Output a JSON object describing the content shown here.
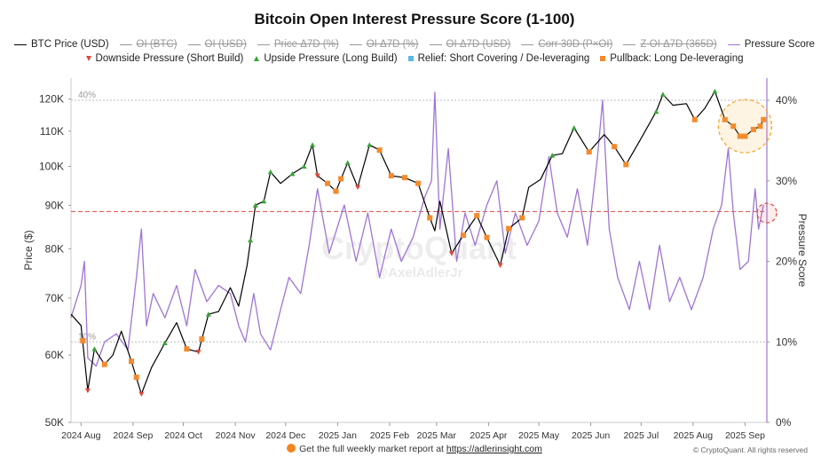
{
  "title": "Bitcoin Open Interest Pressure Score (1-100)",
  "legend_row1": [
    {
      "label": "BTC Price (USD)",
      "color": "#000000",
      "enabled": true,
      "icon": "line"
    },
    {
      "label": "OI (BTC)",
      "color": "#999999",
      "enabled": false,
      "icon": "line"
    },
    {
      "label": "OI (USD)",
      "color": "#999999",
      "enabled": false,
      "icon": "line"
    },
    {
      "label": "Price Δ7D (%)",
      "color": "#999999",
      "enabled": false,
      "icon": "line"
    },
    {
      "label": "OI Δ7D (%)",
      "color": "#999999",
      "enabled": false,
      "icon": "line"
    },
    {
      "label": "OI Δ7D (USD)",
      "color": "#999999",
      "enabled": false,
      "icon": "line"
    },
    {
      "label": "Corr 30D (P×OI)",
      "color": "#999999",
      "enabled": false,
      "icon": "line"
    },
    {
      "label": "Z OI Δ7D (365D)",
      "color": "#999999",
      "enabled": false,
      "icon": "line"
    },
    {
      "label": "Pressure Score",
      "color": "#9e74d6",
      "enabled": true,
      "icon": "line"
    }
  ],
  "legend_row2": [
    {
      "label": "Downside Pressure (Short Build)",
      "color": "#e2463a",
      "icon": "triangle-down"
    },
    {
      "label": "Upside Pressure (Long Build)",
      "color": "#3aa33a",
      "icon": "triangle-up"
    },
    {
      "label": "Relief: Short Covering / De-leveraging",
      "color": "#5bb8e0",
      "icon": "square"
    },
    {
      "label": "Pullback: Long De-leveraging",
      "color": "#f28a2e",
      "icon": "square"
    }
  ],
  "footer": {
    "text": "Get the full weekly market report at ",
    "link": "https://adlerinsight.com",
    "icon": "orange-circle-icon"
  },
  "copyright": "© CryptoQuant. All rights reserved",
  "watermark": {
    "line1": "CryptoQuant",
    "line2": "@AxelAdlerJr"
  },
  "chart_data": {
    "type": "line",
    "title": "Bitcoin Open Interest Pressure Score (1-100)",
    "xlabel": "",
    "ylabel_left": "Price ($)",
    "ylabel_right": "Pressure Score",
    "y_left_scale": "log",
    "y_left_ticks": [
      50000,
      60000,
      70000,
      80000,
      90000,
      100000,
      110000,
      120000
    ],
    "y_left_tick_labels": [
      "50K",
      "60K",
      "70K",
      "80K",
      "90K",
      "100K",
      "110K",
      "120K"
    ],
    "y_right_ticks": [
      0,
      10,
      20,
      30,
      40
    ],
    "y_right_tick_labels": [
      "0%",
      "10%",
      "20%",
      "30%",
      "40%"
    ],
    "x_tick_labels": [
      "2024 Aug",
      "2024 Sep",
      "2024 Oct",
      "2024 Nov",
      "2024 Dec",
      "2025 Jan",
      "2025 Feb",
      "2025 Mar",
      "2025 Apr",
      "2025 May",
      "2025 Jun",
      "2025 Jul",
      "2025 Aug",
      "2025 Sep"
    ],
    "x_range": [
      "2024-07-26",
      "2025-09-14"
    ],
    "reference_lines": [
      {
        "axis": "right",
        "value": 40,
        "label": "40%",
        "style": "dotted",
        "color": "#bbbbbb"
      },
      {
        "axis": "right",
        "value": 10,
        "label": "10%",
        "style": "dotted",
        "color": "#bbbbbb"
      },
      {
        "axis": "left",
        "value": 88500,
        "label": "",
        "style": "dashed",
        "color": "#e2463a"
      }
    ],
    "highlight_circles": [
      {
        "date": "2025-09-01",
        "axis": "left",
        "value": 111500,
        "color": "#f5a623"
      },
      {
        "date": "2025-09-14",
        "axis": "right",
        "value": 26,
        "color": "#e2463a"
      }
    ],
    "series": [
      {
        "name": "BTC Price (USD)",
        "axis": "left",
        "color": "#000000",
        "points": [
          [
            "2024-07-26",
            67000
          ],
          [
            "2024-08-01",
            65000
          ],
          [
            "2024-08-05",
            54500
          ],
          [
            "2024-08-09",
            61000
          ],
          [
            "2024-08-15",
            58500
          ],
          [
            "2024-08-20",
            60000
          ],
          [
            "2024-08-25",
            64000
          ],
          [
            "2024-08-31",
            59000
          ],
          [
            "2024-09-06",
            54000
          ],
          [
            "2024-09-12",
            58000
          ],
          [
            "2024-09-20",
            62000
          ],
          [
            "2024-09-27",
            65500
          ],
          [
            "2024-10-03",
            61000
          ],
          [
            "2024-10-10",
            60500
          ],
          [
            "2024-10-16",
            67000
          ],
          [
            "2024-10-22",
            67500
          ],
          [
            "2024-10-29",
            72000
          ],
          [
            "2024-11-03",
            68500
          ],
          [
            "2024-11-08",
            76500
          ],
          [
            "2024-11-13",
            90000
          ],
          [
            "2024-11-18",
            91000
          ],
          [
            "2024-11-22",
            98500
          ],
          [
            "2024-11-28",
            95500
          ],
          [
            "2024-12-05",
            98000
          ],
          [
            "2024-12-12",
            100000
          ],
          [
            "2024-12-17",
            106000
          ],
          [
            "2024-12-20",
            97500
          ],
          [
            "2024-12-26",
            95500
          ],
          [
            "2024-12-31",
            93500
          ],
          [
            "2025-01-07",
            101000
          ],
          [
            "2025-01-13",
            94500
          ],
          [
            "2025-01-20",
            106000
          ],
          [
            "2025-01-26",
            104500
          ],
          [
            "2025-02-02",
            97500
          ],
          [
            "2025-02-10",
            97000
          ],
          [
            "2025-02-18",
            95500
          ],
          [
            "2025-02-25",
            87000
          ],
          [
            "2025-02-28",
            84000
          ],
          [
            "2025-03-03",
            91000
          ],
          [
            "2025-03-10",
            79000
          ],
          [
            "2025-03-17",
            83000
          ],
          [
            "2025-03-25",
            87500
          ],
          [
            "2025-03-31",
            82500
          ],
          [
            "2025-04-08",
            76500
          ],
          [
            "2025-04-13",
            84500
          ],
          [
            "2025-04-21",
            87000
          ],
          [
            "2025-04-25",
            94500
          ],
          [
            "2025-05-02",
            96500
          ],
          [
            "2025-05-09",
            103000
          ],
          [
            "2025-05-15",
            103500
          ],
          [
            "2025-05-22",
            111000
          ],
          [
            "2025-05-31",
            104000
          ],
          [
            "2025-06-09",
            109000
          ],
          [
            "2025-06-15",
            105500
          ],
          [
            "2025-06-22",
            100500
          ],
          [
            "2025-06-30",
            107000
          ],
          [
            "2025-07-10",
            116000
          ],
          [
            "2025-07-14",
            121500
          ],
          [
            "2025-07-20",
            118000
          ],
          [
            "2025-07-28",
            118500
          ],
          [
            "2025-08-02",
            113500
          ],
          [
            "2025-08-08",
            117000
          ],
          [
            "2025-08-14",
            122500
          ],
          [
            "2025-08-20",
            113500
          ],
          [
            "2025-08-25",
            111500
          ],
          [
            "2025-08-29",
            108500
          ],
          [
            "2025-09-01",
            108500
          ],
          [
            "2025-09-06",
            110500
          ],
          [
            "2025-09-10",
            111500
          ],
          [
            "2025-09-12",
            113500
          ]
        ]
      },
      {
        "name": "Pressure Score",
        "axis": "right",
        "color": "#9e74d6",
        "points": [
          [
            "2024-07-26",
            13
          ],
          [
            "2024-08-01",
            17
          ],
          [
            "2024-08-03",
            20
          ],
          [
            "2024-08-05",
            8
          ],
          [
            "2024-08-10",
            7
          ],
          [
            "2024-08-15",
            10
          ],
          [
            "2024-08-22",
            11
          ],
          [
            "2024-08-29",
            9
          ],
          [
            "2024-09-03",
            18
          ],
          [
            "2024-09-06",
            24
          ],
          [
            "2024-09-09",
            12
          ],
          [
            "2024-09-13",
            16
          ],
          [
            "2024-09-20",
            13
          ],
          [
            "2024-09-27",
            17
          ],
          [
            "2024-10-03",
            12
          ],
          [
            "2024-10-08",
            19
          ],
          [
            "2024-10-15",
            15
          ],
          [
            "2024-10-22",
            17
          ],
          [
            "2024-10-29",
            16
          ],
          [
            "2024-11-03",
            12
          ],
          [
            "2024-11-07",
            10
          ],
          [
            "2024-11-12",
            16
          ],
          [
            "2024-11-16",
            11
          ],
          [
            "2024-11-22",
            9
          ],
          [
            "2024-11-28",
            14
          ],
          [
            "2024-12-03",
            18
          ],
          [
            "2024-12-10",
            16
          ],
          [
            "2024-12-15",
            22
          ],
          [
            "2024-12-20",
            29
          ],
          [
            "2024-12-27",
            21
          ],
          [
            "2025-01-05",
            27
          ],
          [
            "2025-01-12",
            20
          ],
          [
            "2025-01-19",
            26
          ],
          [
            "2025-01-26",
            18
          ],
          [
            "2025-02-02",
            24
          ],
          [
            "2025-02-08",
            20
          ],
          [
            "2025-02-15",
            23
          ],
          [
            "2025-02-22",
            28
          ],
          [
            "2025-02-26",
            30
          ],
          [
            "2025-02-28",
            41
          ],
          [
            "2025-03-03",
            24
          ],
          [
            "2025-03-08",
            34
          ],
          [
            "2025-03-13",
            20
          ],
          [
            "2025-03-18",
            26
          ],
          [
            "2025-03-24",
            22
          ],
          [
            "2025-03-31",
            27
          ],
          [
            "2025-04-06",
            30
          ],
          [
            "2025-04-11",
            21
          ],
          [
            "2025-04-17",
            26
          ],
          [
            "2025-04-24",
            22
          ],
          [
            "2025-05-01",
            25
          ],
          [
            "2025-05-07",
            33
          ],
          [
            "2025-05-12",
            26
          ],
          [
            "2025-05-18",
            23
          ],
          [
            "2025-05-24",
            29
          ],
          [
            "2025-05-30",
            22
          ],
          [
            "2025-06-05",
            33
          ],
          [
            "2025-06-08",
            40
          ],
          [
            "2025-06-12",
            24
          ],
          [
            "2025-06-17",
            18
          ],
          [
            "2025-06-24",
            14
          ],
          [
            "2025-06-30",
            20
          ],
          [
            "2025-07-06",
            14
          ],
          [
            "2025-07-12",
            22
          ],
          [
            "2025-07-18",
            15
          ],
          [
            "2025-07-24",
            18
          ],
          [
            "2025-07-31",
            14
          ],
          [
            "2025-08-07",
            18
          ],
          [
            "2025-08-13",
            24
          ],
          [
            "2025-08-18",
            27
          ],
          [
            "2025-08-22",
            34
          ],
          [
            "2025-08-25",
            26
          ],
          [
            "2025-08-29",
            19
          ],
          [
            "2025-09-03",
            20
          ],
          [
            "2025-09-07",
            29
          ],
          [
            "2025-09-09",
            24
          ],
          [
            "2025-09-12",
            27
          ]
        ]
      }
    ],
    "markers": {
      "downside": [
        "2024-08-05",
        "2024-09-06",
        "2024-10-10",
        "2024-12-20",
        "2025-01-13",
        "2025-03-10",
        "2025-04-08"
      ],
      "upside": [
        "2024-08-09",
        "2024-09-20",
        "2024-10-16",
        "2024-11-10",
        "2024-11-13",
        "2024-11-18",
        "2024-11-22",
        "2024-12-05",
        "2024-12-12",
        "2024-12-17",
        "2025-01-07",
        "2025-01-20",
        "2025-05-09",
        "2025-05-22",
        "2025-07-10",
        "2025-07-14",
        "2025-08-14"
      ],
      "pullback": [
        "2024-08-02",
        "2024-08-15",
        "2024-08-31",
        "2024-09-03",
        "2024-10-03",
        "2024-10-12",
        "2024-12-26",
        "2024-12-31",
        "2025-01-03",
        "2025-01-26",
        "2025-02-02",
        "2025-02-10",
        "2025-02-18",
        "2025-02-25",
        "2025-03-17",
        "2025-03-25",
        "2025-03-31",
        "2025-04-13",
        "2025-04-21",
        "2025-05-31",
        "2025-06-15",
        "2025-06-22",
        "2025-08-02",
        "2025-08-20",
        "2025-08-25",
        "2025-08-29",
        "2025-09-01",
        "2025-09-06",
        "2025-09-10",
        "2025-09-12"
      ],
      "relief": []
    }
  }
}
